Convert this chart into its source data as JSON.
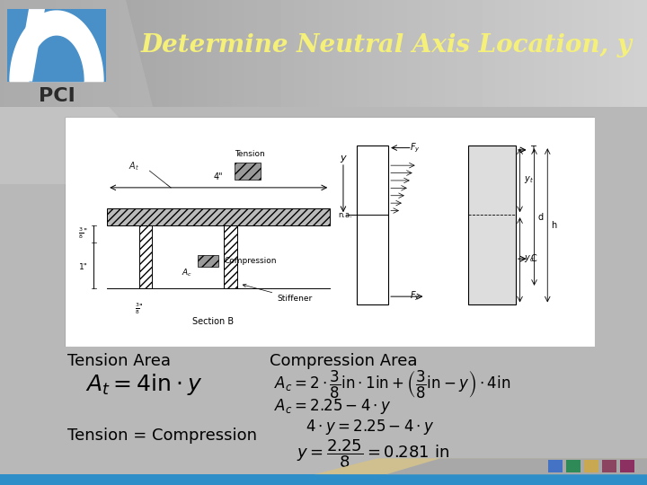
{
  "title": "Determine Neutral Axis Location, y",
  "title_color": "#F5F07A",
  "title_fontsize": 20,
  "bg_main_color": "#B8B8B8",
  "bg_header_color": "#A0A0A0",
  "bg_diagram_color": "#F0F0F0",
  "pci_text_color": "#2B2B2B",
  "footer_colors": [
    "#4472C4",
    "#2E8B57",
    "#C8A850",
    "#8B4560",
    "#8B3060"
  ],
  "bottom_bar_color": "#2E8EC8",
  "tension_area_label": "Tension Area",
  "compression_area_label": "Compression Area",
  "tension_compression_label": "Tension = Compression",
  "eq1": "$A_t = 4\\mathrm{in} \\cdot y$",
  "eq2_1": "$A_c = 2 \\cdot \\dfrac{3}{8}\\mathrm{in} \\cdot 1\\mathrm{in} + \\left(\\dfrac{3}{8}\\mathrm{in} - y\\right) \\cdot 4\\mathrm{in}$",
  "eq2_2": "$A_c = 2.25 - 4 \\cdot y$",
  "eq2_3": "$4 \\cdot y = 2.25 - 4 \\cdot y$",
  "eq2_4": "$y = \\dfrac{2.25}{8} = 0.281\\ \\mathrm{in}$",
  "label_fontsize": 13,
  "eq_fontsize": 12
}
